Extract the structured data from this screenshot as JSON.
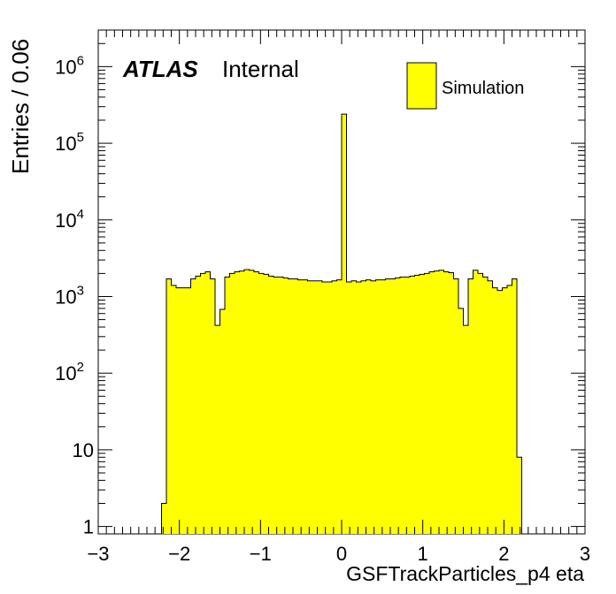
{
  "chart_data": {
    "type": "bar",
    "xlabel": "GSFTrackParticles_p4 eta",
    "ylabel": "Entries / 0.06",
    "xlim": [
      -3,
      3
    ],
    "ylim": [
      0.8,
      3000000
    ],
    "y_scale": "log",
    "x_ticks": [
      -3,
      -2,
      -1,
      0,
      1,
      2,
      3
    ],
    "x_tick_labels": [
      "−3",
      "−2",
      "−1",
      "0",
      "1",
      "2",
      "3"
    ],
    "y_ticks": [
      {
        "value": 1,
        "base": "1",
        "exp": ""
      },
      {
        "value": 10,
        "base": "10",
        "exp": ""
      },
      {
        "value": 100,
        "base": "10",
        "exp": "2"
      },
      {
        "value": 1000,
        "base": "10",
        "exp": "3"
      },
      {
        "value": 10000,
        "base": "10",
        "exp": "4"
      },
      {
        "value": 100000,
        "base": "10",
        "exp": "5"
      },
      {
        "value": 1000000,
        "base": "10",
        "exp": "6"
      }
    ],
    "atlas_label": "ATLAS",
    "atlas_status": "Internal",
    "legend": {
      "placement": "top-right",
      "entries": [
        {
          "name": "Simulation",
          "color": "#ffff00"
        }
      ]
    },
    "fill_color": "#ffff00",
    "line_color": "#000000",
    "bin_width": 0.06,
    "bins": [
      {
        "x0": -2.22,
        "x1": -2.16,
        "y": 2
      },
      {
        "x0": -2.16,
        "x1": -2.1,
        "y": 1700
      },
      {
        "x0": -2.1,
        "x1": -2.04,
        "y": 1400
      },
      {
        "x0": -2.04,
        "x1": -1.98,
        "y": 1300
      },
      {
        "x0": -1.98,
        "x1": -1.92,
        "y": 1300
      },
      {
        "x0": -1.92,
        "x1": -1.86,
        "y": 1300
      },
      {
        "x0": -1.86,
        "x1": -1.8,
        "y": 1700
      },
      {
        "x0": -1.8,
        "x1": -1.74,
        "y": 1850
      },
      {
        "x0": -1.74,
        "x1": -1.68,
        "y": 2000
      },
      {
        "x0": -1.68,
        "x1": -1.62,
        "y": 2100
      },
      {
        "x0": -1.62,
        "x1": -1.56,
        "y": 1700
      },
      {
        "x0": -1.56,
        "x1": -1.5,
        "y": 420
      },
      {
        "x0": -1.5,
        "x1": -1.44,
        "y": 680
      },
      {
        "x0": -1.44,
        "x1": -1.38,
        "y": 1800
      },
      {
        "x0": -1.38,
        "x1": -1.32,
        "y": 2000
      },
      {
        "x0": -1.32,
        "x1": -1.26,
        "y": 2100
      },
      {
        "x0": -1.26,
        "x1": -1.2,
        "y": 2150
      },
      {
        "x0": -1.2,
        "x1": -1.14,
        "y": 2250
      },
      {
        "x0": -1.14,
        "x1": -1.08,
        "y": 2200
      },
      {
        "x0": -1.08,
        "x1": -1.02,
        "y": 2100
      },
      {
        "x0": -1.02,
        "x1": -0.96,
        "y": 2000
      },
      {
        "x0": -0.96,
        "x1": -0.9,
        "y": 1950
      },
      {
        "x0": -0.9,
        "x1": -0.84,
        "y": 1850
      },
      {
        "x0": -0.84,
        "x1": -0.78,
        "y": 1800
      },
      {
        "x0": -0.78,
        "x1": -0.72,
        "y": 1800
      },
      {
        "x0": -0.72,
        "x1": -0.66,
        "y": 1750
      },
      {
        "x0": -0.66,
        "x1": -0.6,
        "y": 1700
      },
      {
        "x0": -0.6,
        "x1": -0.54,
        "y": 1700
      },
      {
        "x0": -0.54,
        "x1": -0.48,
        "y": 1650
      },
      {
        "x0": -0.48,
        "x1": -0.42,
        "y": 1650
      },
      {
        "x0": -0.42,
        "x1": -0.36,
        "y": 1600
      },
      {
        "x0": -0.36,
        "x1": -0.3,
        "y": 1600
      },
      {
        "x0": -0.3,
        "x1": -0.24,
        "y": 1600
      },
      {
        "x0": -0.24,
        "x1": -0.18,
        "y": 1550
      },
      {
        "x0": -0.18,
        "x1": -0.12,
        "y": 1550
      },
      {
        "x0": -0.12,
        "x1": -0.06,
        "y": 1600
      },
      {
        "x0": -0.06,
        "x1": 0.0,
        "y": 1650
      },
      {
        "x0": 0.0,
        "x1": 0.06,
        "y": 240000
      },
      {
        "x0": 0.06,
        "x1": 0.12,
        "y": 1550
      },
      {
        "x0": 0.12,
        "x1": 0.18,
        "y": 1600
      },
      {
        "x0": 0.18,
        "x1": 0.24,
        "y": 1550
      },
      {
        "x0": 0.24,
        "x1": 0.3,
        "y": 1600
      },
      {
        "x0": 0.3,
        "x1": 0.36,
        "y": 1650
      },
      {
        "x0": 0.36,
        "x1": 0.42,
        "y": 1600
      },
      {
        "x0": 0.42,
        "x1": 0.48,
        "y": 1650
      },
      {
        "x0": 0.48,
        "x1": 0.54,
        "y": 1650
      },
      {
        "x0": 0.54,
        "x1": 0.6,
        "y": 1700
      },
      {
        "x0": 0.6,
        "x1": 0.66,
        "y": 1700
      },
      {
        "x0": 0.66,
        "x1": 0.72,
        "y": 1750
      },
      {
        "x0": 0.72,
        "x1": 0.78,
        "y": 1800
      },
      {
        "x0": 0.78,
        "x1": 0.84,
        "y": 1800
      },
      {
        "x0": 0.84,
        "x1": 0.9,
        "y": 1850
      },
      {
        "x0": 0.9,
        "x1": 0.96,
        "y": 1900
      },
      {
        "x0": 0.96,
        "x1": 1.02,
        "y": 1950
      },
      {
        "x0": 1.02,
        "x1": 1.08,
        "y": 2000
      },
      {
        "x0": 1.08,
        "x1": 1.14,
        "y": 2100
      },
      {
        "x0": 1.14,
        "x1": 1.2,
        "y": 2150
      },
      {
        "x0": 1.2,
        "x1": 1.26,
        "y": 2200
      },
      {
        "x0": 1.26,
        "x1": 1.32,
        "y": 2100
      },
      {
        "x0": 1.32,
        "x1": 1.38,
        "y": 2050
      },
      {
        "x0": 1.38,
        "x1": 1.44,
        "y": 1700
      },
      {
        "x0": 1.44,
        "x1": 1.5,
        "y": 700
      },
      {
        "x0": 1.5,
        "x1": 1.56,
        "y": 420
      },
      {
        "x0": 1.56,
        "x1": 1.62,
        "y": 1700
      },
      {
        "x0": 1.62,
        "x1": 1.68,
        "y": 2200
      },
      {
        "x0": 1.68,
        "x1": 1.74,
        "y": 2000
      },
      {
        "x0": 1.74,
        "x1": 1.8,
        "y": 1800
      },
      {
        "x0": 1.8,
        "x1": 1.86,
        "y": 1600
      },
      {
        "x0": 1.86,
        "x1": 1.92,
        "y": 1300
      },
      {
        "x0": 1.92,
        "x1": 1.98,
        "y": 1200
      },
      {
        "x0": 1.98,
        "x1": 2.04,
        "y": 1300
      },
      {
        "x0": 2.04,
        "x1": 2.1,
        "y": 1400
      },
      {
        "x0": 2.1,
        "x1": 2.16,
        "y": 1700
      },
      {
        "x0": 2.16,
        "x1": 2.22,
        "y": 8
      }
    ]
  }
}
